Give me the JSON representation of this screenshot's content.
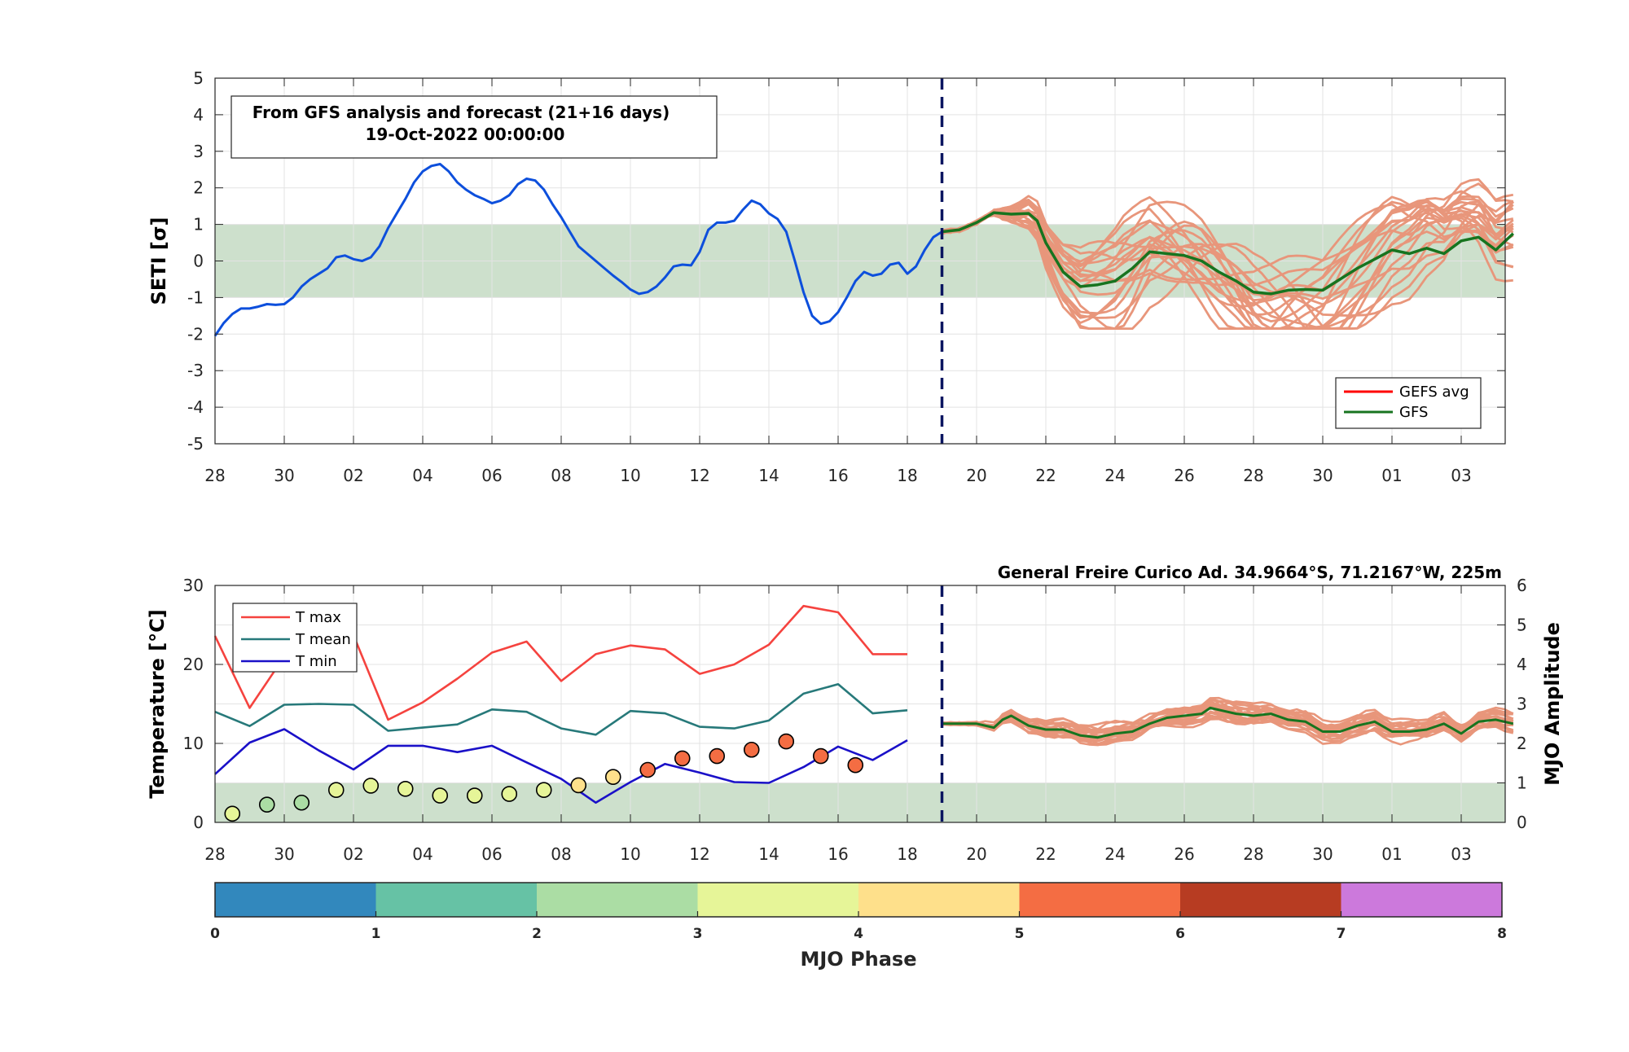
{
  "colors": {
    "band": "#cde0cc",
    "seti_analysis": "#0d4fdc",
    "gfs": "#17741f",
    "ensemble": "#e8967b",
    "gefs_avg": "#ff0000",
    "t_max": "#f5433f",
    "t_mean": "#27797a",
    "t_min": "#1a10c8",
    "forecast_marker": "#0a1560"
  },
  "chart_data": [
    {
      "type": "line",
      "ylabel": "SETI [σ]",
      "ylim": [
        -5,
        5
      ],
      "yticks": [
        "5",
        "4",
        "3",
        "2",
        "1",
        "0",
        "-1",
        "-2",
        "-3",
        "-4",
        "-5"
      ],
      "xticks": [
        "28",
        "30",
        "02",
        "04",
        "06",
        "08",
        "10",
        "12",
        "14",
        "16",
        "18",
        "20",
        "22",
        "24",
        "26",
        "28",
        "30",
        "01",
        "03"
      ],
      "x_range_days": [
        0,
        37.5
      ],
      "grid": true,
      "annotation": {
        "line1": "From GFS analysis and forecast (21+16 days)",
        "line2": "19-Oct-2022 00:00:00"
      },
      "normal_band": [
        -1,
        1
      ],
      "forecast_start_day": 21,
      "legend": {
        "placement": "bottom-right",
        "entries": [
          {
            "label": "GEFS avg",
            "color": "#ff0000"
          },
          {
            "label": "GFS",
            "color": "#17741f"
          }
        ]
      },
      "analysis_series": {
        "name": "analysis",
        "points": [
          [
            0,
            -2.05
          ],
          [
            0.25,
            -1.7
          ],
          [
            0.5,
            -1.45
          ],
          [
            0.75,
            -1.3
          ],
          [
            1,
            -1.3
          ],
          [
            1.25,
            -1.25
          ],
          [
            1.5,
            -1.18
          ],
          [
            1.75,
            -1.2
          ],
          [
            2,
            -1.18
          ],
          [
            2.25,
            -1.0
          ],
          [
            2.5,
            -0.7
          ],
          [
            2.75,
            -0.5
          ],
          [
            3,
            -0.35
          ],
          [
            3.25,
            -0.2
          ],
          [
            3.5,
            0.1
          ],
          [
            3.75,
            0.15
          ],
          [
            4,
            0.05
          ],
          [
            4.25,
            0.0
          ],
          [
            4.5,
            0.1
          ],
          [
            4.75,
            0.4
          ],
          [
            5,
            0.9
          ],
          [
            5.25,
            1.3
          ],
          [
            5.5,
            1.7
          ],
          [
            5.75,
            2.15
          ],
          [
            6,
            2.45
          ],
          [
            6.25,
            2.6
          ],
          [
            6.5,
            2.65
          ],
          [
            6.75,
            2.45
          ],
          [
            7,
            2.15
          ],
          [
            7.25,
            1.95
          ],
          [
            7.5,
            1.8
          ],
          [
            7.75,
            1.7
          ],
          [
            8,
            1.58
          ],
          [
            8.25,
            1.65
          ],
          [
            8.5,
            1.8
          ],
          [
            8.75,
            2.1
          ],
          [
            9,
            2.25
          ],
          [
            9.25,
            2.2
          ],
          [
            9.5,
            1.95
          ],
          [
            9.75,
            1.55
          ],
          [
            10,
            1.2
          ],
          [
            10.25,
            0.8
          ],
          [
            10.5,
            0.4
          ],
          [
            10.75,
            0.2
          ],
          [
            11,
            0.0
          ],
          [
            11.25,
            -0.2
          ],
          [
            11.5,
            -0.4
          ],
          [
            11.75,
            -0.58
          ],
          [
            12,
            -0.78
          ],
          [
            12.25,
            -0.9
          ],
          [
            12.5,
            -0.85
          ],
          [
            12.75,
            -0.7
          ],
          [
            13,
            -0.45
          ],
          [
            13.25,
            -0.15
          ],
          [
            13.5,
            -0.1
          ],
          [
            13.75,
            -0.12
          ],
          [
            14,
            0.25
          ],
          [
            14.25,
            0.85
          ],
          [
            14.5,
            1.05
          ],
          [
            14.75,
            1.05
          ],
          [
            15,
            1.1
          ],
          [
            15.25,
            1.4
          ],
          [
            15.5,
            1.65
          ],
          [
            15.75,
            1.55
          ],
          [
            16,
            1.3
          ],
          [
            16.25,
            1.15
          ],
          [
            16.5,
            0.8
          ],
          [
            16.75,
            0.0
          ],
          [
            17,
            -0.85
          ],
          [
            17.25,
            -1.5
          ],
          [
            17.5,
            -1.72
          ],
          [
            17.75,
            -1.65
          ],
          [
            18,
            -1.4
          ],
          [
            18.25,
            -1.0
          ],
          [
            18.5,
            -0.55
          ],
          [
            18.75,
            -0.3
          ],
          [
            19,
            -0.4
          ],
          [
            19.25,
            -0.35
          ],
          [
            19.5,
            -0.1
          ],
          [
            19.75,
            -0.05
          ],
          [
            20,
            -0.35
          ],
          [
            20.25,
            -0.15
          ],
          [
            20.5,
            0.3
          ],
          [
            20.75,
            0.65
          ],
          [
            21,
            0.8
          ]
        ]
      },
      "gfs_series": {
        "name": "GFS",
        "points": [
          [
            21,
            0.8
          ],
          [
            21.5,
            0.85
          ],
          [
            22,
            1.05
          ],
          [
            22.5,
            1.32
          ],
          [
            23,
            1.28
          ],
          [
            23.5,
            1.3
          ],
          [
            23.75,
            1.1
          ],
          [
            24,
            0.5
          ],
          [
            24.5,
            -0.3
          ],
          [
            25,
            -0.7
          ],
          [
            25.5,
            -0.65
          ],
          [
            26,
            -0.55
          ],
          [
            26.5,
            -0.2
          ],
          [
            27,
            0.25
          ],
          [
            27.5,
            0.2
          ],
          [
            28,
            0.15
          ],
          [
            28.5,
            0.0
          ],
          [
            29,
            -0.3
          ],
          [
            29.5,
            -0.55
          ],
          [
            30,
            -0.85
          ],
          [
            30.5,
            -0.9
          ],
          [
            31,
            -0.8
          ],
          [
            31.5,
            -0.78
          ],
          [
            32,
            -0.8
          ],
          [
            32.5,
            -0.5
          ],
          [
            33,
            -0.2
          ],
          [
            33.5,
            0.05
          ],
          [
            34,
            0.3
          ],
          [
            34.5,
            0.2
          ],
          [
            35,
            0.35
          ],
          [
            35.5,
            0.2
          ],
          [
            36,
            0.55
          ],
          [
            36.5,
            0.65
          ],
          [
            37,
            0.3
          ],
          [
            37.5,
            0.75
          ]
        ]
      },
      "ensemble_note": "21 forecast members spreading between about -1.8 and 2.3 after day 23"
    },
    {
      "type": "line",
      "ylabel": "Temperature [°C]",
      "y2label": "MJO Amplitude",
      "ylim": [
        0,
        30
      ],
      "y2lim": [
        0,
        6
      ],
      "yticks": [
        "30",
        "20",
        "10",
        "0"
      ],
      "y2ticks": [
        "6",
        "5",
        "4",
        "3",
        "2",
        "1",
        "0"
      ],
      "xticks": [
        "28",
        "30",
        "02",
        "04",
        "06",
        "08",
        "10",
        "12",
        "14",
        "16",
        "18",
        "20",
        "22",
        "24",
        "26",
        "28",
        "30",
        "01",
        "03"
      ],
      "grid": true,
      "station": "General Freire Curico Ad. 34.9664°S, 71.2167°W, 225m",
      "amplitude_band": [
        0,
        1
      ],
      "forecast_start_day": 21,
      "legend": {
        "placement": "top-left",
        "entries": [
          {
            "label": "T max",
            "color": "#f5433f"
          },
          {
            "label": "T mean",
            "color": "#27797a"
          },
          {
            "label": "T min",
            "color": "#1a10c8"
          }
        ]
      },
      "temperature_days": [
        0,
        1,
        2,
        3,
        4,
        5,
        6,
        7,
        8,
        9,
        10,
        11,
        12,
        13,
        14,
        15,
        16,
        17,
        18,
        19,
        20
      ],
      "series": [
        {
          "name": "T max",
          "values": [
            23.6,
            14.5,
            21.0,
            23.5,
            23.7,
            13.0,
            15.2,
            18.2,
            21.5,
            22.9,
            17.9,
            21.3,
            22.4,
            21.9,
            18.8,
            20.0,
            22.5,
            27.4,
            26.6,
            21.3,
            21.3
          ]
        },
        {
          "name": "T mean",
          "values": [
            14.0,
            12.2,
            14.9,
            15.0,
            14.9,
            11.6,
            12.0,
            12.4,
            14.3,
            14.0,
            11.9,
            11.1,
            14.1,
            13.8,
            12.1,
            11.9,
            12.9,
            16.3,
            17.5,
            13.8,
            14.2
          ]
        },
        {
          "name": "T min",
          "values": [
            6.1,
            10.1,
            11.8,
            9.1,
            6.7,
            9.7,
            9.7,
            8.9,
            9.7,
            7.6,
            5.5,
            2.5,
            5.1,
            7.4,
            6.3,
            5.1,
            5.0,
            7.0,
            9.6,
            7.9,
            10.4
          ]
        }
      ],
      "mjo_points": [
        {
          "day": 0.5,
          "amplitude": 0.22,
          "phase": 3
        },
        {
          "day": 1.5,
          "amplitude": 0.45,
          "phase": 2
        },
        {
          "day": 2.5,
          "amplitude": 0.5,
          "phase": 2
        },
        {
          "day": 3.5,
          "amplitude": 0.82,
          "phase": 3
        },
        {
          "day": 4.5,
          "amplitude": 0.93,
          "phase": 3
        },
        {
          "day": 5.5,
          "amplitude": 0.85,
          "phase": 3
        },
        {
          "day": 6.5,
          "amplitude": 0.68,
          "phase": 3
        },
        {
          "day": 7.5,
          "amplitude": 0.68,
          "phase": 3
        },
        {
          "day": 8.5,
          "amplitude": 0.72,
          "phase": 3
        },
        {
          "day": 9.5,
          "amplitude": 0.82,
          "phase": 3
        },
        {
          "day": 10.5,
          "amplitude": 0.94,
          "phase": 4
        },
        {
          "day": 11.5,
          "amplitude": 1.15,
          "phase": 4
        },
        {
          "day": 12.5,
          "amplitude": 1.33,
          "phase": 5
        },
        {
          "day": 13.5,
          "amplitude": 1.62,
          "phase": 5
        },
        {
          "day": 14.5,
          "amplitude": 1.68,
          "phase": 5
        },
        {
          "day": 15.5,
          "amplitude": 1.84,
          "phase": 5
        },
        {
          "day": 16.5,
          "amplitude": 2.05,
          "phase": 5
        },
        {
          "day": 17.5,
          "amplitude": 1.68,
          "phase": 5
        },
        {
          "day": 18.5,
          "amplitude": 1.45,
          "phase": 5
        }
      ],
      "gfs_amplitude": {
        "name": "GFS",
        "points": [
          [
            21,
            2.5
          ],
          [
            21.5,
            2.5
          ],
          [
            22,
            2.5
          ],
          [
            22.5,
            2.4
          ],
          [
            22.75,
            2.6
          ],
          [
            23,
            2.7
          ],
          [
            23.5,
            2.45
          ],
          [
            24,
            2.35
          ],
          [
            24.5,
            2.35
          ],
          [
            25,
            2.2
          ],
          [
            25.5,
            2.15
          ],
          [
            26,
            2.25
          ],
          [
            26.5,
            2.3
          ],
          [
            27,
            2.5
          ],
          [
            27.5,
            2.65
          ],
          [
            28,
            2.7
          ],
          [
            28.5,
            2.75
          ],
          [
            28.75,
            2.9
          ],
          [
            29,
            2.85
          ],
          [
            29.5,
            2.75
          ],
          [
            30,
            2.7
          ],
          [
            30.5,
            2.75
          ],
          [
            31,
            2.6
          ],
          [
            31.5,
            2.55
          ],
          [
            32,
            2.3
          ],
          [
            32.5,
            2.3
          ],
          [
            33,
            2.45
          ],
          [
            33.5,
            2.55
          ],
          [
            34,
            2.3
          ],
          [
            34.5,
            2.3
          ],
          [
            35,
            2.35
          ],
          [
            35.5,
            2.5
          ],
          [
            36,
            2.25
          ],
          [
            36.5,
            2.55
          ],
          [
            37,
            2.6
          ],
          [
            37.5,
            2.5
          ]
        ]
      }
    },
    {
      "type": "colorbar",
      "label": "MJO Phase",
      "ticks": [
        "0",
        "1",
        "2",
        "3",
        "4",
        "5",
        "6",
        "7",
        "8"
      ],
      "phase_colors": [
        "#3288bd",
        "#66c2a5",
        "#abdda4",
        "#e6f598",
        "#fee08b",
        "#f46d43",
        "#b73c22",
        "#cc79dc"
      ]
    }
  ]
}
